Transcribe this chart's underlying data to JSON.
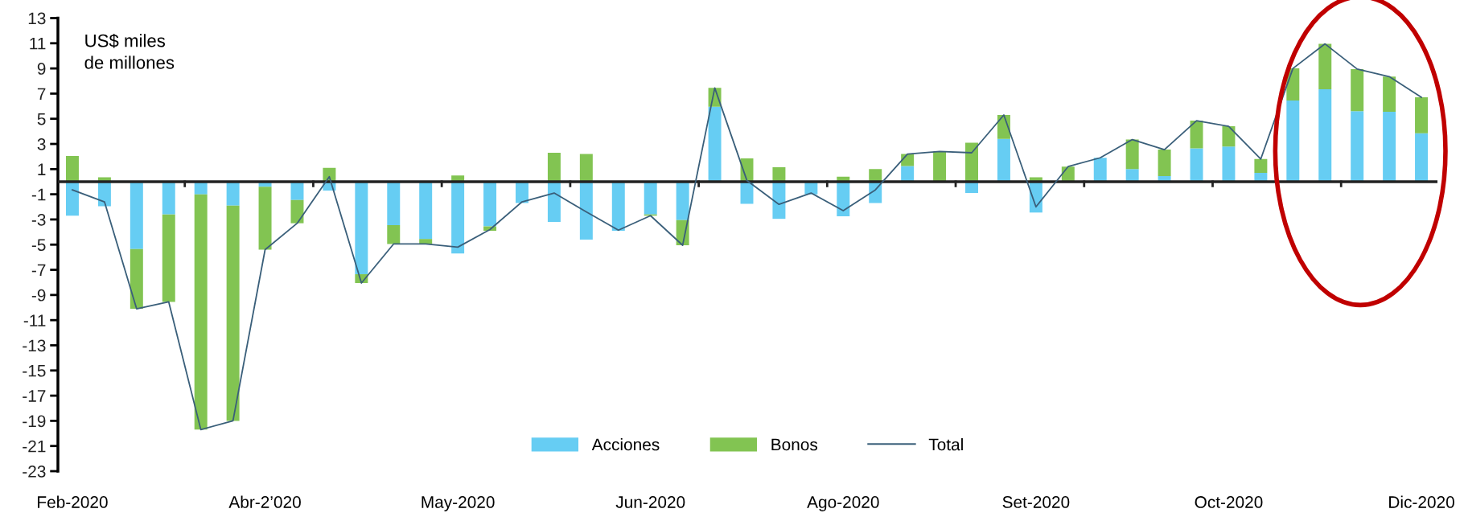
{
  "chart_data": {
    "type": "bar",
    "stacked": true,
    "ylabel": "US$ miles\nde millones",
    "categories": [
      "Feb-2020",
      null,
      null,
      null,
      null,
      null,
      "Abr-2’020",
      null,
      null,
      null,
      null,
      null,
      "May-2020",
      null,
      null,
      null,
      null,
      null,
      "Jun-2020",
      null,
      null,
      null,
      null,
      null,
      "Ago-2020",
      null,
      null,
      null,
      null,
      null,
      "Set-2020",
      null,
      null,
      null,
      null,
      null,
      "Oct-2020",
      null,
      null,
      null,
      null,
      null,
      "Dic-2020"
    ],
    "series": [
      {
        "name": "Acciones",
        "color": "#66cdf3",
        "values": [
          -2.7,
          -1.95,
          -5.35,
          -2.6,
          -1.0,
          -1.9,
          -0.4,
          -1.45,
          -0.7,
          -7.35,
          -3.45,
          -4.55,
          -5.7,
          -3.55,
          -1.7,
          -3.2,
          -4.6,
          -3.9,
          -2.6,
          -3.05,
          5.95,
          -1.75,
          -2.95,
          -1.0,
          -2.75,
          -1.7,
          1.25,
          0,
          -0.9,
          3.4,
          -2.45,
          0,
          1.9,
          1.0,
          0.45,
          2.65,
          2.8,
          0.7,
          6.45,
          7.35,
          5.6,
          5.55,
          3.85
        ]
      },
      {
        "name": "Bonos",
        "color": "#82c452",
        "values": [
          2.05,
          0.35,
          -4.75,
          -6.95,
          -18.7,
          -17.1,
          -5.0,
          -1.85,
          1.1,
          -0.7,
          -1.5,
          -0.4,
          0.5,
          -0.35,
          0,
          2.3,
          2.2,
          0,
          -0.1,
          -2.0,
          1.5,
          1.85,
          1.15,
          null,
          0.4,
          1.0,
          0.95,
          2.4,
          3.1,
          1.9,
          0.35,
          1.2,
          0,
          2.35,
          2.1,
          2.2,
          1.6,
          1.1,
          2.55,
          3.6,
          3.35,
          2.8,
          2.85
        ]
      },
      {
        "name": "Total",
        "type": "line",
        "color": "#3a5f7a",
        "values": [
          -0.65,
          -1.6,
          -10.1,
          -9.55,
          -19.7,
          -19.0,
          -5.4,
          -3.3,
          0.4,
          -8.05,
          -4.95,
          -4.95,
          -5.2,
          -3.8,
          -1.6,
          -0.9,
          -2.4,
          -3.85,
          -2.7,
          -5.05,
          7.45,
          0.1,
          -1.8,
          -0.9,
          -2.3,
          -0.65,
          2.2,
          2.4,
          2.3,
          5.3,
          -2.0,
          1.2,
          1.9,
          3.35,
          2.55,
          4.85,
          4.4,
          1.8,
          9.0,
          10.95,
          8.95,
          8.35,
          6.7
        ]
      }
    ],
    "ylim": [
      -23,
      13
    ],
    "yticks": [
      -23,
      -21,
      -19,
      -17,
      -15,
      -13,
      -11,
      -9,
      -7,
      -5,
      -3,
      -1,
      1,
      3,
      5,
      7,
      9,
      11,
      13
    ],
    "grid": false,
    "legend": "bottom"
  }
}
